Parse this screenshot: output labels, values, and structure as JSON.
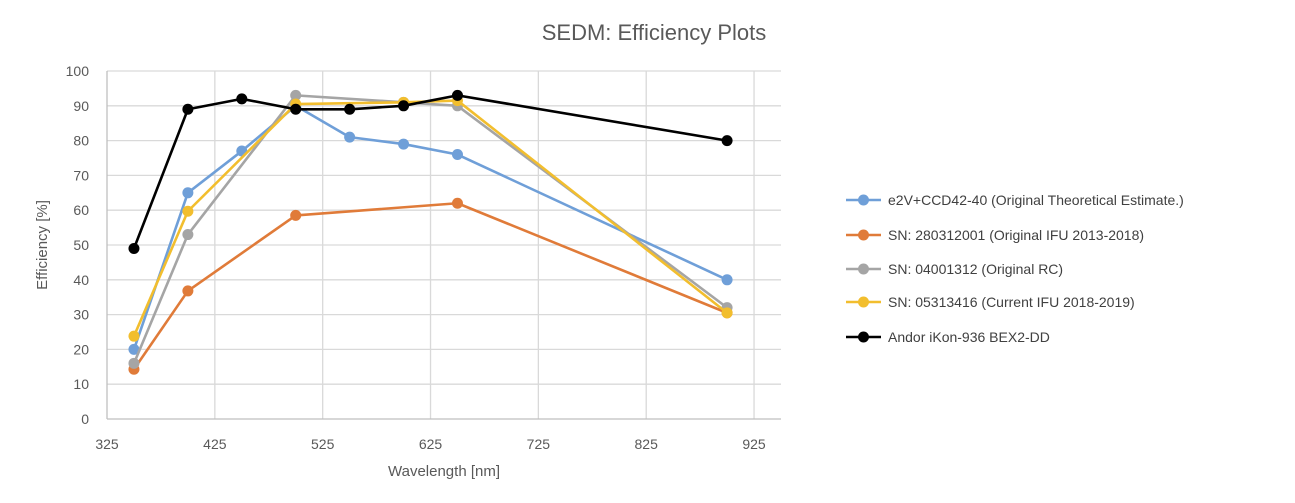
{
  "chart_data": {
    "type": "line",
    "title": "SEDM: Efficiency Plots",
    "xlabel": "Wavelength [nm]",
    "ylabel": "Efficiency [%]",
    "xlim": [
      325,
      950
    ],
    "ylim": [
      0,
      100
    ],
    "xticks": [
      325,
      425,
      525,
      625,
      725,
      825,
      925
    ],
    "yticks": [
      0,
      10,
      20,
      30,
      40,
      50,
      60,
      70,
      80,
      90,
      100
    ],
    "grid": true,
    "legend_position": "right",
    "series": [
      {
        "name": "e2V+CCD42-40 (Original Theoretical Estimate.)",
        "color": "#6F9FD8",
        "x": [
          350,
          400,
          450,
          500,
          550,
          600,
          650,
          900
        ],
        "y": [
          20,
          65,
          77,
          90,
          81,
          79,
          76,
          40
        ]
      },
      {
        "name": "SN: 280312001 (Original IFU 2013-2018)",
        "color": "#E07B39",
        "x": [
          350,
          400,
          500,
          650,
          900
        ],
        "y": [
          14.3,
          36.8,
          58.5,
          62,
          30.5
        ]
      },
      {
        "name": "SN: 04001312 (Original RC)",
        "color": "#A5A5A5",
        "x": [
          350,
          400,
          500,
          600,
          650,
          900
        ],
        "y": [
          16,
          53,
          93,
          91,
          90,
          32
        ]
      },
      {
        "name": "SN: 05313416 (Current IFU 2018-2019)",
        "color": "#F2BE2E",
        "x": [
          350,
          400,
          500,
          600,
          650,
          900
        ],
        "y": [
          23.8,
          59.7,
          90.5,
          91,
          91.5,
          30.5
        ]
      },
      {
        "name": "Andor iKon-936 BEX2-DD",
        "color": "#000000",
        "x": [
          350,
          400,
          450,
          500,
          550,
          600,
          650,
          900
        ],
        "y": [
          49,
          89,
          92,
          89,
          89,
          90,
          93,
          80
        ]
      }
    ]
  }
}
